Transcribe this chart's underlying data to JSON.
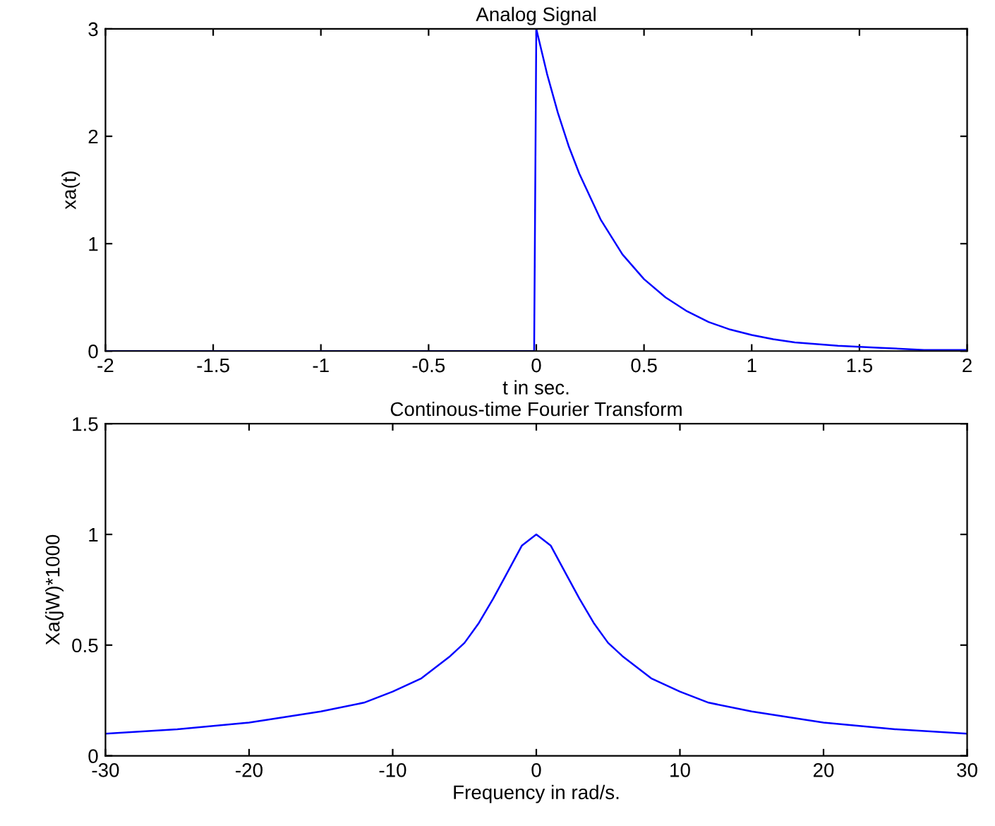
{
  "chart_data": [
    {
      "type": "line",
      "title": "Analog Signal",
      "xlabel": "t in sec.",
      "ylabel": "xa(t)",
      "series": [
        {
          "color": "#0000ff",
          "x": [
            -2,
            -1,
            -0.01,
            0,
            0.05,
            0.1,
            0.15,
            0.2,
            0.3,
            0.4,
            0.5,
            0.6,
            0.7,
            0.8,
            0.9,
            1.0,
            1.1,
            1.2,
            1.4,
            1.6,
            1.8,
            2.0
          ],
          "values": [
            0,
            0,
            0,
            3,
            2.58,
            2.22,
            1.91,
            1.65,
            1.22,
            0.9,
            0.67,
            0.5,
            0.37,
            0.27,
            0.2,
            0.15,
            0.11,
            0.08,
            0.05,
            0.03,
            0.01,
            0.01
          ]
        }
      ],
      "xlim": [
        -2,
        2
      ],
      "ylim": [
        0,
        3
      ],
      "xticks": [
        -2,
        -1.5,
        -1,
        -0.5,
        0,
        0.5,
        1,
        1.5,
        2
      ],
      "yticks": [
        0,
        1,
        2,
        3
      ],
      "grid": false,
      "legend": false
    },
    {
      "type": "line",
      "title": "Continous-time Fourier Transform",
      "xlabel": "Frequency in rad/s.",
      "ylabel": "Xa(jW)*1000",
      "series": [
        {
          "color": "#0000ff",
          "x": [
            -30,
            -25,
            -20,
            -15,
            -12,
            -10,
            -8,
            -6,
            -5,
            -4,
            -3,
            -2,
            -1,
            0,
            1,
            2,
            3,
            4,
            5,
            6,
            8,
            10,
            12,
            15,
            20,
            25,
            30
          ],
          "values": [
            0.1,
            0.12,
            0.15,
            0.2,
            0.24,
            0.29,
            0.35,
            0.45,
            0.51,
            0.6,
            0.71,
            0.83,
            0.95,
            1.0,
            0.95,
            0.83,
            0.71,
            0.6,
            0.51,
            0.45,
            0.35,
            0.29,
            0.24,
            0.2,
            0.15,
            0.12,
            0.1
          ]
        }
      ],
      "xlim": [
        -30,
        30
      ],
      "ylim": [
        0,
        1.5
      ],
      "xticks": [
        -30,
        -20,
        -10,
        0,
        10,
        20,
        30
      ],
      "yticks": [
        0,
        0.5,
        1,
        1.5
      ],
      "grid": false,
      "legend": false
    }
  ]
}
